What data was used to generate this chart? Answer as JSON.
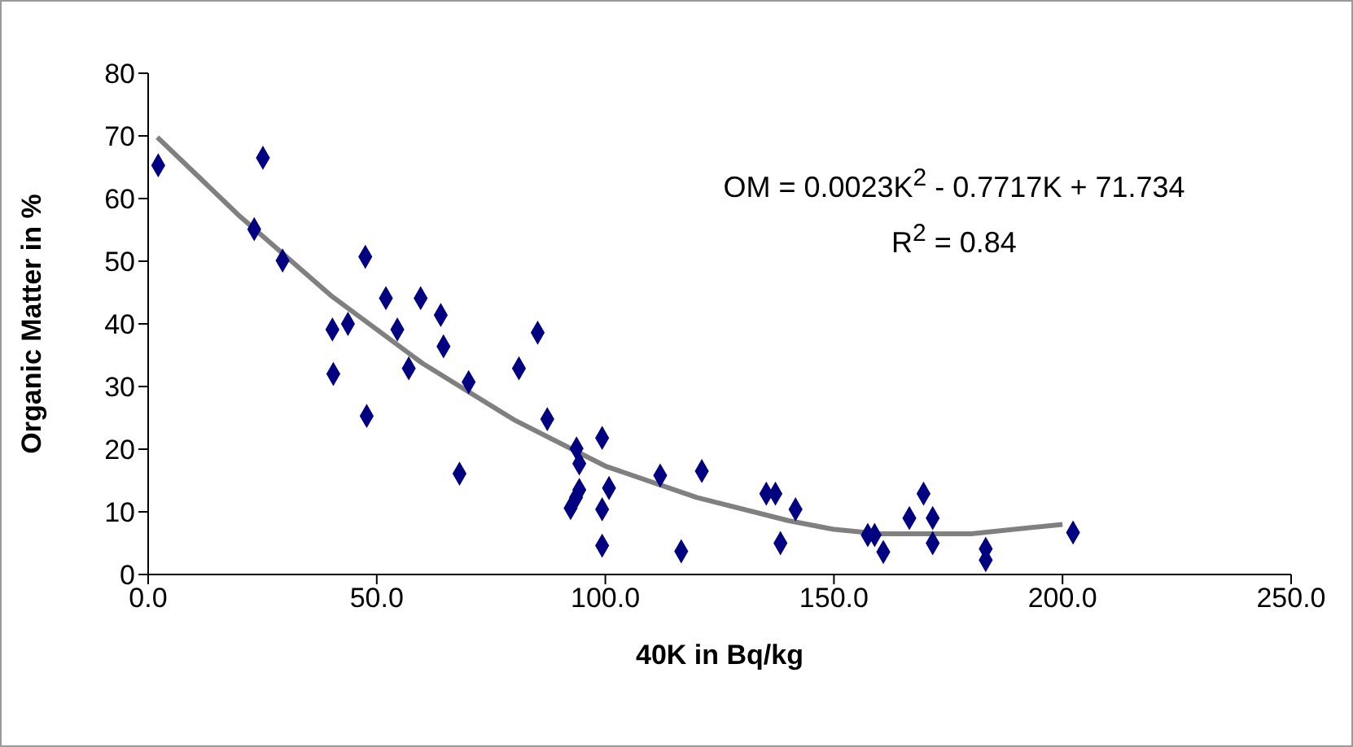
{
  "chart_data": {
    "type": "scatter",
    "xlabel": "40K in Bq/kg",
    "ylabel": "Organic Matter in %",
    "xlim": [
      0,
      250
    ],
    "xticks": [
      {
        "value": 0,
        "label": "0.0"
      },
      {
        "value": 50,
        "label": "50.0"
      },
      {
        "value": 100,
        "label": "100.0"
      },
      {
        "value": 150,
        "label": "150.0"
      },
      {
        "value": 200,
        "label": "200.0"
      },
      {
        "value": 250,
        "label": "250.0"
      }
    ],
    "ylim": [
      0,
      80
    ],
    "yticks": [
      0,
      10,
      20,
      30,
      40,
      50,
      60,
      70,
      80
    ],
    "marker": "diamond",
    "annotations": [
      "OM = 0.0023K$^{2}$ - 0.7717K + 71.734",
      "R$^{2}$ = 0.84"
    ],
    "series": [
      {
        "color": "#000080",
        "x": [
          2.2,
          25.1,
          23.2,
          29.4,
          47.5,
          40.3,
          43.7,
          40.5,
          47.8,
          52.0,
          54.5,
          57.0,
          59.6,
          64.0,
          64.6,
          70.1,
          68.1,
          81.1,
          85.2,
          87.3,
          93.7,
          94.3,
          94.3,
          93.6,
          92.4,
          99.3,
          100.8,
          99.3,
          99.3,
          112.0,
          116.6,
          121.1,
          135.2,
          137.2,
          141.6,
          138.3,
          157.4,
          158.9,
          160.8,
          166.5,
          169.6,
          171.6,
          171.6,
          183.2,
          183.2,
          202.3
        ],
        "values": [
          65.3,
          66.5,
          55.1,
          50.1,
          50.7,
          39.1,
          40.0,
          32.0,
          25.3,
          44.1,
          39.1,
          32.9,
          44.1,
          41.4,
          36.4,
          30.7,
          16.1,
          32.9,
          38.6,
          24.8,
          20.1,
          17.7,
          13.5,
          12.3,
          10.6,
          21.8,
          13.8,
          10.4,
          4.6,
          15.8,
          3.7,
          16.5,
          12.9,
          12.9,
          10.4,
          5.0,
          6.3,
          6.3,
          3.6,
          9.0,
          12.9,
          9.0,
          5.0,
          4.1,
          2.3,
          6.7
        ]
      },
      {
        "type": "line",
        "color": "#808080",
        "marker": "none",
        "x": [
          2,
          20,
          40,
          50,
          60,
          80,
          100,
          120,
          140,
          150,
          160,
          180,
          200
        ],
        "values": [
          69.8,
          57.2,
          44.5,
          39.1,
          33.7,
          24.7,
          17.3,
          12.3,
          8.6,
          7.2,
          6.5,
          6.5,
          8.0
        ]
      }
    ]
  }
}
